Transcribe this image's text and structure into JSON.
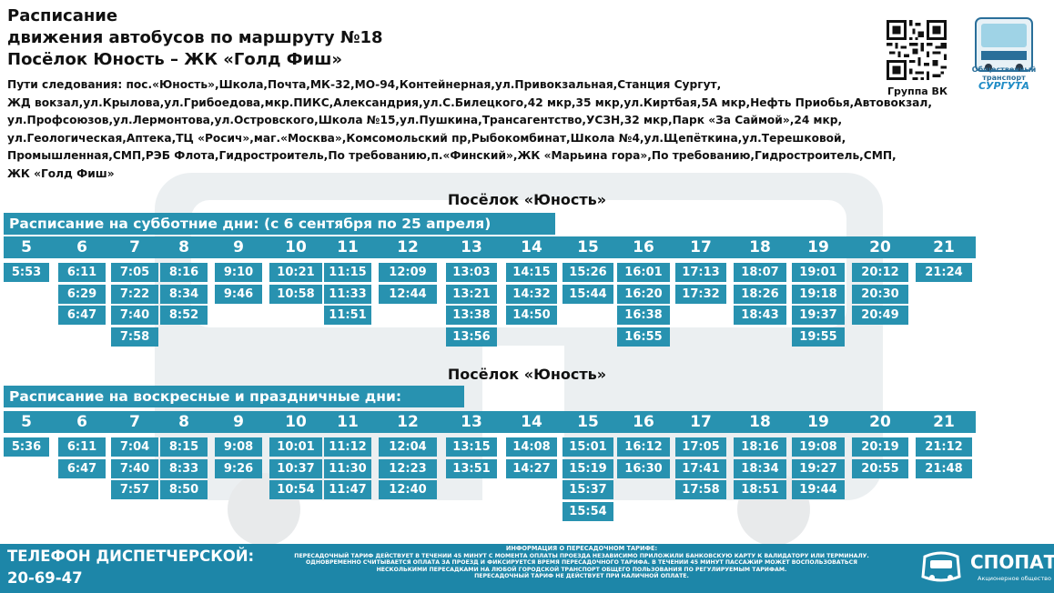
{
  "header": {
    "line1": "Расписание",
    "line2": "движения автобусов по маршруту №18",
    "line3": "Посёлок Юность – ЖК «Голд Фиш»",
    "route_lines": [
      "Пути следования: пос.«Юность»,Школа,Почта,МК-32,МО-94,Контейнерная,ул.Привокзальная,Станция Сургут,",
      "ЖД вокзал,ул.Крылова,ул.Грибоедова,мкр.ПИКС,Александрия,ул.С.Билецкого,42 мкр,35 мкр,ул.Киртбая,5А мкр,Нефть Приобья,Автовокзал,",
      "ул.Профсоюзов,ул.Лермонтова,ул.Островского,Школа №15,ул.Пушкина,Трансагентство,УСЗН,32 мкр,Парк «За Саймой»,24 мкр,",
      "ул.Геологическая,Аптека,ТЦ «Росич»,маг.«Москва»,Комсомольский пр,Рыбокомбинат,Школа №4,ул.Щепёткина,ул.Терешковой,",
      "Промышленная,СМП,РЭБ Флота,Гидростроитель,По требованию,п.«Финский»,ЖК «Марьина гора»,По требованию,Гидростроитель,СМП,",
      "ЖК «Голд Фиш»"
    ],
    "qr_caption": "Группа ВК",
    "logo_small": "Общественный транспорт",
    "logo_city": "СУРГУТА"
  },
  "saturday": {
    "station": "Посёлок «Юность»",
    "banner": "Расписание на субботние дни: (с 6 сентября по 25 апреля)",
    "columns": [
      {
        "hour": "5",
        "times": [
          "5:53"
        ]
      },
      {
        "hour": "6",
        "times": [
          "6:11",
          "6:29",
          "6:47"
        ]
      },
      {
        "hour": "7",
        "times": [
          "7:05",
          "7:22",
          "7:40",
          "7:58"
        ]
      },
      {
        "hour": "8",
        "times": [
          "8:16",
          "8:34",
          "8:52"
        ]
      },
      {
        "hour": "9",
        "times": [
          "9:10",
          "9:46"
        ]
      },
      {
        "hour": "10",
        "times": [
          "10:21",
          "10:58"
        ]
      },
      {
        "hour": "11",
        "times": [
          "11:15",
          "11:33",
          "11:51"
        ]
      },
      {
        "hour": "12",
        "times": [
          "12:09",
          "12:44"
        ]
      },
      {
        "hour": "13",
        "times": [
          "13:03",
          "13:21",
          "13:38",
          "13:56"
        ]
      },
      {
        "hour": "14",
        "times": [
          "14:15",
          "14:32",
          "14:50"
        ]
      },
      {
        "hour": "15",
        "times": [
          "15:26",
          "15:44"
        ]
      },
      {
        "hour": "16",
        "times": [
          "16:01",
          "16:20",
          "16:38",
          "16:55"
        ]
      },
      {
        "hour": "17",
        "times": [
          "17:13",
          "17:32"
        ]
      },
      {
        "hour": "18",
        "times": [
          "18:07",
          "18:26",
          "18:43"
        ]
      },
      {
        "hour": "19",
        "times": [
          "19:01",
          "19:18",
          "19:37",
          "19:55"
        ]
      },
      {
        "hour": "20",
        "times": [
          "20:12",
          "20:30",
          "20:49"
        ]
      },
      {
        "hour": "21",
        "times": [
          "21:24"
        ]
      }
    ]
  },
  "sunday": {
    "station": "Посёлок «Юность»",
    "banner": "Расписание на воскресные и праздничные дни:",
    "columns": [
      {
        "hour": "5",
        "times": [
          "5:36"
        ]
      },
      {
        "hour": "6",
        "times": [
          "6:11",
          "6:47"
        ]
      },
      {
        "hour": "7",
        "times": [
          "7:04",
          "7:40",
          "7:57"
        ]
      },
      {
        "hour": "8",
        "times": [
          "8:15",
          "8:33",
          "8:50"
        ]
      },
      {
        "hour": "9",
        "times": [
          "9:08",
          "9:26"
        ]
      },
      {
        "hour": "10",
        "times": [
          "10:01",
          "10:37",
          "10:54"
        ]
      },
      {
        "hour": "11",
        "times": [
          "11:12",
          "11:30",
          "11:47"
        ]
      },
      {
        "hour": "12",
        "times": [
          "12:04",
          "12:23",
          "12:40"
        ]
      },
      {
        "hour": "13",
        "times": [
          "13:15",
          "13:51"
        ]
      },
      {
        "hour": "14",
        "times": [
          "14:08",
          "14:27"
        ]
      },
      {
        "hour": "15",
        "times": [
          "15:01",
          "15:19",
          "15:37",
          "15:54"
        ]
      },
      {
        "hour": "16",
        "times": [
          "16:12",
          "16:30"
        ]
      },
      {
        "hour": "17",
        "times": [
          "17:05",
          "17:41",
          "17:58"
        ]
      },
      {
        "hour": "18",
        "times": [
          "18:16",
          "18:34",
          "18:51"
        ]
      },
      {
        "hour": "19",
        "times": [
          "19:08",
          "19:27",
          "19:44"
        ]
      },
      {
        "hour": "20",
        "times": [
          "20:19",
          "20:55"
        ]
      },
      {
        "hour": "21",
        "times": [
          "21:12",
          "21:48"
        ]
      }
    ]
  },
  "footer": {
    "phone_label": "ТЕЛЕФОН ДИСПЕТЧЕРСКОЙ:",
    "phone_number": "20-69-47",
    "info_title": "ИНФОРМАЦИЯ О ПЕРЕСАДОЧНОМ ТАРИФЕ:",
    "info_lines": [
      "ПЕРЕСАДОЧНЫЙ ТАРИФ ДЕЙСТВУЕТ В ТЕЧЕНИИ 45 МИНУТ С МОМЕНТА ОПЛАТЫ ПРОЕЗДА НЕЗАВИСИМО ПРИЛОЖИЛИ БАНКОВСКУЮ КАРТУ К ВАЛИДАТОРУ ИЛИ ТЕРМИНАЛУ.",
      "ОДНОВРЕМЕННО СЧИТЫВАЕТСЯ ОПЛАТА ЗА ПРОЕЗД И ФИКСИРУЕТСЯ ВРЕМЯ ПЕРЕСАДОЧНОГО ТАРИФА. В ТЕЧЕНИИ 45 МИНУТ ПАССАЖИР МОЖЕТ ВОСПОЛЬЗОВАТЬСЯ",
      "НЕСКОЛЬКИМИ ПЕРЕСАДКАМИ НА ЛЮБОЙ ГОРОДСКОЙ ТРАНСПОРТ ОБЩЕГО ПОЛЬЗОВАНИЯ ПО РЕГУЛИРУЕМЫМ ТАРИФАМ.",
      "ПЕРЕСАДОЧНЫЙ ТАРИФ НЕ ДЕЙСТВУЕТ ПРИ НАЛИЧНОЙ ОПЛАТЕ."
    ],
    "brand": "СПОПАТ",
    "brand_sub": "Акционерное общество"
  },
  "colors": {
    "accent": "#2892b0",
    "footer": "#1d86a8"
  }
}
